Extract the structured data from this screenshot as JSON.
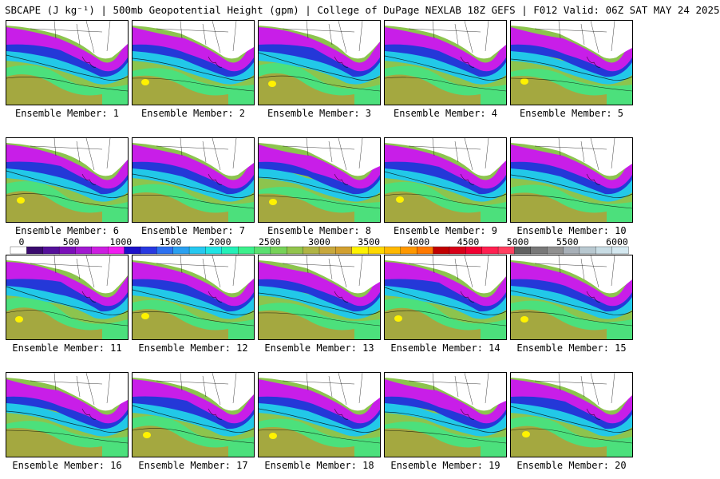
{
  "title": "SBCAPE (J kg⁻¹) | 500mb Geopotential Height (gpm) | College of DuPage NEXLAB 18Z GEFS | F012 Valid: 06Z SAT MAY 24 2025",
  "caption_prefix": "Ensemble Member: ",
  "members": [
    {
      "label": "Ensemble Member: 1"
    },
    {
      "label": "Ensemble Member: 2"
    },
    {
      "label": "Ensemble Member: 3"
    },
    {
      "label": "Ensemble Member: 4"
    },
    {
      "label": "Ensemble Member: 5"
    },
    {
      "label": "Ensemble Member: 6"
    },
    {
      "label": "Ensemble Member: 7"
    },
    {
      "label": "Ensemble Member: 8"
    },
    {
      "label": "Ensemble Member: 9"
    },
    {
      "label": "Ensemble Member: 10"
    },
    {
      "label": "Ensemble Member: 11"
    },
    {
      "label": "Ensemble Member: 12"
    },
    {
      "label": "Ensemble Member: 13"
    },
    {
      "label": "Ensemble Member: 14"
    },
    {
      "label": "Ensemble Member: 15"
    },
    {
      "label": "Ensemble Member: 16"
    },
    {
      "label": "Ensemble Member: 17"
    },
    {
      "label": "Ensemble Member: 18"
    },
    {
      "label": "Ensemble Member: 19"
    },
    {
      "label": "Ensemble Member: 20"
    }
  ],
  "colorbar": {
    "ticks": [
      "0",
      "500",
      "1000",
      "1500",
      "2000",
      "2500",
      "3000",
      "3500",
      "4000",
      "4500",
      "5000",
      "5500",
      "6000"
    ],
    "min": 0,
    "max": 6000,
    "colors": [
      "#ffffff",
      "#3a0a6e",
      "#55109a",
      "#7a0fb8",
      "#a11ad0",
      "#cc1ee0",
      "#f01cf0",
      "#1c10c8",
      "#2838e0",
      "#2c70f0",
      "#2aa0f0",
      "#26c8f0",
      "#20e4e4",
      "#24f0b8",
      "#3cf08c",
      "#5ae070",
      "#76d258",
      "#92c44c",
      "#b0b444",
      "#c8a83c",
      "#d2a030",
      "#fff200",
      "#ffd800",
      "#ffb800",
      "#ff9800",
      "#ff7800",
      "#c00000",
      "#d80018",
      "#f00030",
      "#ff2050",
      "#ff4060",
      "#606060",
      "#787878",
      "#909090",
      "#a8b0b8",
      "#b8c8d0",
      "#c8dce4",
      "#d4e8f0"
    ]
  },
  "field_colors": {
    "none": "#ffffff",
    "low": "#c81ee8",
    "mid_low": "#2438d8",
    "mid": "#22c8e8",
    "mid_high": "#4ce07c",
    "high": "#8cc44e",
    "peak": "#a4a840",
    "extreme": "#fff200",
    "contour": "#000000"
  }
}
